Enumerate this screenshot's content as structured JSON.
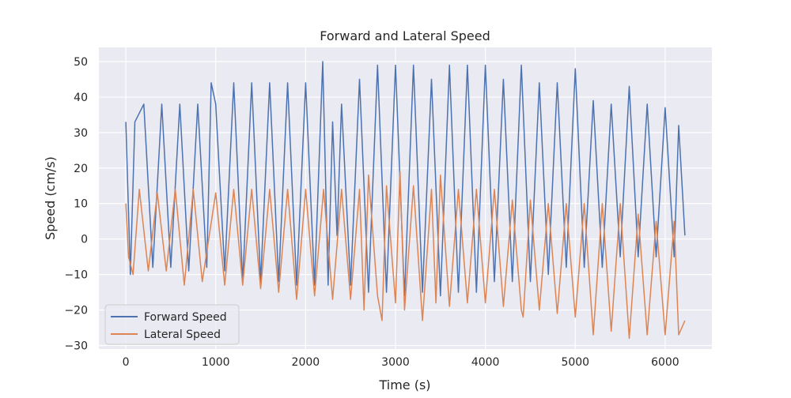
{
  "chart_data": {
    "type": "line",
    "title": "Forward and Lateral Speed",
    "xlabel": "Time (s)",
    "ylabel": "Speed (cm/s)",
    "xlim": [
      -300,
      6520
    ],
    "ylim": [
      -31,
      54
    ],
    "x_ticks": [
      0,
      1000,
      2000,
      3000,
      4000,
      5000,
      6000
    ],
    "y_ticks": [
      -30,
      -20,
      -10,
      0,
      10,
      20,
      30,
      40,
      50
    ],
    "x_tick_labels": [
      "0",
      "1000",
      "2000",
      "3000",
      "4000",
      "5000",
      "6000"
    ],
    "y_tick_labels": [
      "−30",
      "−20",
      "−10",
      "0",
      "10",
      "20",
      "30",
      "40",
      "50"
    ],
    "grid": true,
    "legend_position": "lower-left",
    "background": "#eaeaf2",
    "series": [
      {
        "name": "Forward Speed",
        "color": "#4c72b0",
        "points": [
          [
            0,
            33
          ],
          [
            50,
            -10
          ],
          [
            100,
            33
          ],
          [
            200,
            38
          ],
          [
            300,
            -8
          ],
          [
            400,
            38
          ],
          [
            500,
            -8
          ],
          [
            600,
            38
          ],
          [
            700,
            -9
          ],
          [
            800,
            38
          ],
          [
            900,
            -8
          ],
          [
            950,
            44
          ],
          [
            1000,
            38
          ],
          [
            1100,
            -9
          ],
          [
            1200,
            44
          ],
          [
            1300,
            -12
          ],
          [
            1400,
            44
          ],
          [
            1500,
            -12
          ],
          [
            1600,
            44
          ],
          [
            1700,
            -12
          ],
          [
            1800,
            44
          ],
          [
            1900,
            -13
          ],
          [
            2000,
            44
          ],
          [
            2100,
            -13
          ],
          [
            2190,
            50
          ],
          [
            2250,
            -13
          ],
          [
            2300,
            33
          ],
          [
            2350,
            1
          ],
          [
            2400,
            38
          ],
          [
            2500,
            -13
          ],
          [
            2600,
            45
          ],
          [
            2700,
            -15
          ],
          [
            2800,
            49
          ],
          [
            2900,
            -15
          ],
          [
            3000,
            49
          ],
          [
            3100,
            -16
          ],
          [
            3200,
            49
          ],
          [
            3300,
            -15
          ],
          [
            3400,
            45
          ],
          [
            3500,
            -16
          ],
          [
            3600,
            49
          ],
          [
            3700,
            -15
          ],
          [
            3800,
            49
          ],
          [
            3900,
            -15
          ],
          [
            4000,
            49
          ],
          [
            4100,
            -12
          ],
          [
            4200,
            45
          ],
          [
            4300,
            -12
          ],
          [
            4400,
            49
          ],
          [
            4500,
            -12
          ],
          [
            4600,
            44
          ],
          [
            4700,
            -10
          ],
          [
            4800,
            44
          ],
          [
            4900,
            -8
          ],
          [
            5000,
            48
          ],
          [
            5100,
            -8
          ],
          [
            5200,
            39
          ],
          [
            5300,
            -8
          ],
          [
            5400,
            38
          ],
          [
            5500,
            -5
          ],
          [
            5600,
            43
          ],
          [
            5700,
            -5
          ],
          [
            5800,
            38
          ],
          [
            5900,
            -5
          ],
          [
            6000,
            37
          ],
          [
            6100,
            -5
          ],
          [
            6150,
            32
          ],
          [
            6220,
            1
          ]
        ]
      },
      {
        "name": "Lateral Speed",
        "color": "#dd8452",
        "points": [
          [
            0,
            10
          ],
          [
            30,
            -5
          ],
          [
            80,
            -10
          ],
          [
            150,
            14
          ],
          [
            250,
            -9
          ],
          [
            350,
            13
          ],
          [
            450,
            -9
          ],
          [
            550,
            14
          ],
          [
            650,
            -13
          ],
          [
            750,
            14
          ],
          [
            850,
            -12
          ],
          [
            1000,
            13
          ],
          [
            1100,
            -13
          ],
          [
            1200,
            14
          ],
          [
            1300,
            -13
          ],
          [
            1400,
            14
          ],
          [
            1500,
            -14
          ],
          [
            1600,
            14
          ],
          [
            1700,
            -15
          ],
          [
            1800,
            14
          ],
          [
            1900,
            -17
          ],
          [
            2000,
            14
          ],
          [
            2100,
            -16
          ],
          [
            2200,
            14
          ],
          [
            2300,
            -17
          ],
          [
            2400,
            14
          ],
          [
            2500,
            -17
          ],
          [
            2600,
            14
          ],
          [
            2650,
            -20
          ],
          [
            2700,
            18
          ],
          [
            2800,
            -16
          ],
          [
            2850,
            -23
          ],
          [
            2900,
            15
          ],
          [
            3000,
            -18
          ],
          [
            3050,
            19
          ],
          [
            3100,
            -20
          ],
          [
            3200,
            15
          ],
          [
            3300,
            -23
          ],
          [
            3400,
            14
          ],
          [
            3450,
            -18
          ],
          [
            3500,
            18
          ],
          [
            3600,
            -19
          ],
          [
            3700,
            14
          ],
          [
            3800,
            -18
          ],
          [
            3900,
            14
          ],
          [
            4000,
            -18
          ],
          [
            4100,
            14
          ],
          [
            4200,
            -19
          ],
          [
            4300,
            11
          ],
          [
            4400,
            -20
          ],
          [
            4420,
            -22
          ],
          [
            4500,
            11
          ],
          [
            4600,
            -20
          ],
          [
            4700,
            10
          ],
          [
            4800,
            -21
          ],
          [
            4900,
            10
          ],
          [
            5000,
            -22
          ],
          [
            5100,
            10
          ],
          [
            5200,
            -27
          ],
          [
            5300,
            10
          ],
          [
            5400,
            -26
          ],
          [
            5500,
            10
          ],
          [
            5600,
            -28
          ],
          [
            5700,
            7
          ],
          [
            5800,
            -27
          ],
          [
            5900,
            5
          ],
          [
            6000,
            -27
          ],
          [
            6100,
            5
          ],
          [
            6150,
            -27
          ],
          [
            6220,
            -23
          ]
        ]
      }
    ]
  }
}
